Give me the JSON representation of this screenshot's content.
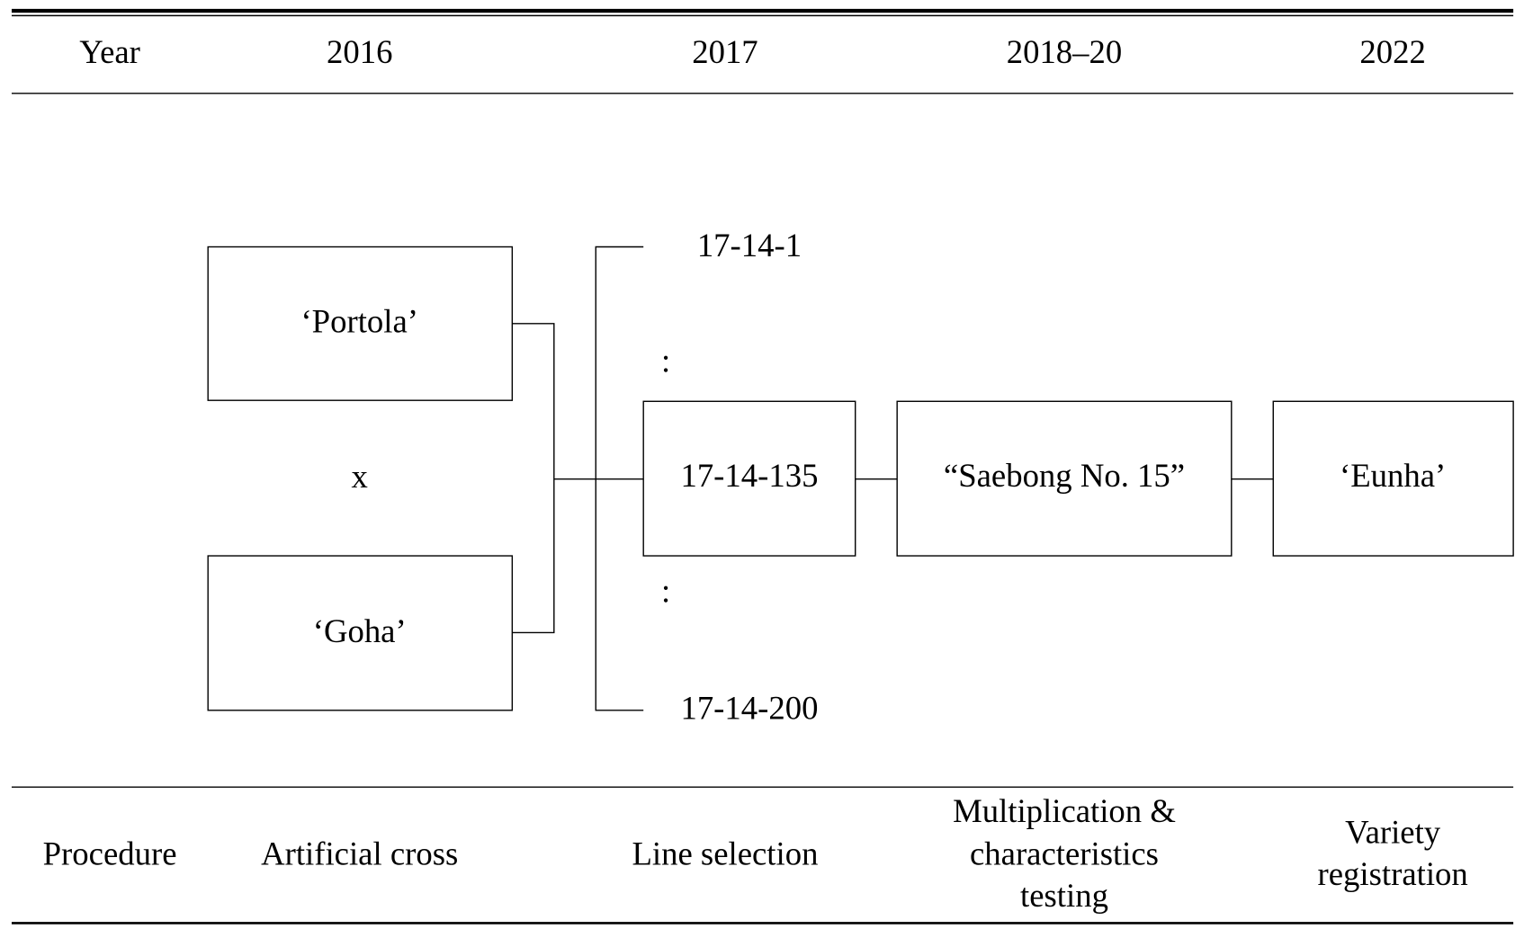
{
  "header": {
    "label": "Year",
    "years": [
      "2016",
      "2017",
      "2018–20",
      "2022"
    ]
  },
  "nodes": [
    {
      "label": "‘Portola’"
    },
    {
      "label": "x"
    },
    {
      "label": "‘Goha’"
    },
    {
      "label": "17-14-1"
    },
    {
      "label": ":"
    },
    {
      "label": "17-14-135"
    },
    {
      "label": ":"
    },
    {
      "label": "17-14-200"
    },
    {
      "label": "“Saebong No. 15”"
    },
    {
      "label": "‘Eunha’"
    }
  ],
  "footer": {
    "label": "Procedure",
    "steps": [
      {
        "lines": [
          "Artificial cross"
        ]
      },
      {
        "lines": [
          "Line selection"
        ]
      },
      {
        "lines": [
          "Multiplication &",
          "characteristics",
          "testing"
        ]
      },
      {
        "lines": [
          "Variety",
          "registration"
        ]
      }
    ]
  }
}
